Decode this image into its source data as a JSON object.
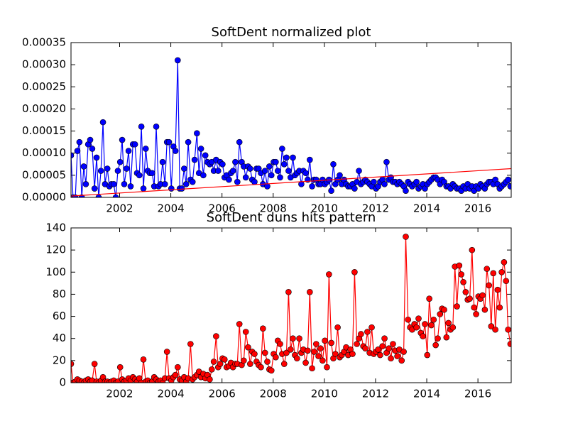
{
  "chart_data": [
    {
      "type": "line",
      "title": "SoftDent normalized plot",
      "xlim": [
        2000.1,
        2017.3
      ],
      "xticks": [
        2002,
        2004,
        2006,
        2008,
        2010,
        2012,
        2014,
        2016
      ],
      "ylim": [
        0,
        0.00035
      ],
      "yticks": [
        {
          "value": 0,
          "label": "0.00000"
        },
        {
          "value": 5e-05,
          "label": "0.00005"
        },
        {
          "value": 0.0001,
          "label": "0.00010"
        },
        {
          "value": 0.00015,
          "label": "0.00015"
        },
        {
          "value": 0.0002,
          "label": "0.00020"
        },
        {
          "value": 0.00025,
          "label": "0.00025"
        },
        {
          "value": 0.0003,
          "label": "0.00030"
        },
        {
          "value": 0.00035,
          "label": "0.00035"
        }
      ],
      "x": [
        2000.1,
        2000.18,
        2000.27,
        2000.35,
        2000.43,
        2000.52,
        2000.6,
        2000.68,
        2000.77,
        2000.85,
        2000.93,
        2001.02,
        2001.1,
        2001.18,
        2001.27,
        2001.35,
        2001.43,
        2001.52,
        2001.6,
        2001.68,
        2001.77,
        2001.85,
        2001.93,
        2002.02,
        2002.1,
        2002.18,
        2002.27,
        2002.35,
        2002.43,
        2002.52,
        2002.6,
        2002.68,
        2002.77,
        2002.85,
        2002.93,
        2003.02,
        2003.1,
        2003.18,
        2003.27,
        2003.35,
        2003.43,
        2003.52,
        2003.6,
        2003.68,
        2003.77,
        2003.85,
        2003.93,
        2004.02,
        2004.1,
        2004.18,
        2004.27,
        2004.35,
        2004.43,
        2004.52,
        2004.6,
        2004.68,
        2004.77,
        2004.85,
        2004.93,
        2005.02,
        2005.1,
        2005.18,
        2005.27,
        2005.35,
        2005.43,
        2005.52,
        2005.6,
        2005.68,
        2005.77,
        2005.85,
        2005.93,
        2006.02,
        2006.1,
        2006.18,
        2006.27,
        2006.35,
        2006.43,
        2006.52,
        2006.6,
        2006.68,
        2006.77,
        2006.85,
        2006.93,
        2007.02,
        2007.1,
        2007.18,
        2007.27,
        2007.35,
        2007.43,
        2007.52,
        2007.6,
        2007.68,
        2007.77,
        2007.85,
        2007.93,
        2008.02,
        2008.1,
        2008.18,
        2008.27,
        2008.35,
        2008.43,
        2008.52,
        2008.6,
        2008.68,
        2008.77,
        2008.85,
        2008.93,
        2009.02,
        2009.1,
        2009.18,
        2009.27,
        2009.35,
        2009.43,
        2009.52,
        2009.6,
        2009.68,
        2009.77,
        2009.85,
        2009.93,
        2010.02,
        2010.1,
        2010.18,
        2010.27,
        2010.35,
        2010.43,
        2010.52,
        2010.6,
        2010.68,
        2010.77,
        2010.85,
        2010.93,
        2011.02,
        2011.1,
        2011.18,
        2011.27,
        2011.35,
        2011.43,
        2011.52,
        2011.6,
        2011.68,
        2011.77,
        2011.85,
        2011.93,
        2012.02,
        2012.1,
        2012.18,
        2012.27,
        2012.35,
        2012.43,
        2012.52,
        2012.6,
        2012.68,
        2012.77,
        2012.85,
        2012.93,
        2013.02,
        2013.1,
        2013.18,
        2013.27,
        2013.35,
        2013.43,
        2013.52,
        2013.6,
        2013.68,
        2013.77,
        2013.85,
        2013.93,
        2014.02,
        2014.1,
        2014.18,
        2014.27,
        2014.35,
        2014.43,
        2014.52,
        2014.6,
        2014.68,
        2014.77,
        2014.85,
        2014.93,
        2015.02,
        2015.1,
        2015.18,
        2015.27,
        2015.35,
        2015.43,
        2015.52,
        2015.6,
        2015.68,
        2015.77,
        2015.85,
        2015.93,
        2016.02,
        2016.1,
        2016.18,
        2016.27,
        2016.35,
        2016.43,
        2016.52,
        2016.6,
        2016.68,
        2016.77,
        2016.85,
        2016.93,
        2017.02,
        2017.1,
        2017.18,
        2017.27
      ],
      "series": [
        {
          "color": "#0000ff",
          "marker": true,
          "values": [
            9.5e-05,
            0,
            0,
            0.000105,
            0.000125,
            0,
            7e-05,
            3e-05,
            0.00012,
            0.00013,
            0.00011,
            2e-05,
            9e-05,
            0,
            6e-05,
            0.00017,
            3e-05,
            6.5e-05,
            2.5e-05,
            3e-05,
            3e-05,
            0,
            6e-05,
            8e-05,
            0.00013,
            3e-05,
            6.5e-05,
            0.000105,
            2.5e-05,
            0.00012,
            0.00012,
            5.5e-05,
            5e-05,
            0.00016,
            2e-05,
            0.00011,
            6e-05,
            5.5e-05,
            5.5e-05,
            2.5e-05,
            0.00016,
            2.5e-05,
            3e-05,
            8e-05,
            3e-05,
            0.000125,
            0.000125,
            2e-05,
            0.000115,
            0.000105,
            0.00031,
            2e-05,
            2e-05,
            6.5e-05,
            3e-05,
            0.000125,
            4e-05,
            3.5e-05,
            8.5e-05,
            0.000145,
            5.5e-05,
            0.00011,
            5e-05,
            9.5e-05,
            8e-05,
            7.5e-05,
            8e-05,
            6e-05,
            8.5e-05,
            6e-05,
            8e-05,
            7.5e-05,
            4.5e-05,
            5e-05,
            4e-05,
            5.5e-05,
            6e-05,
            8e-05,
            3.5e-05,
            0.000125,
            8e-05,
            7e-05,
            4.5e-05,
            7e-05,
            6.5e-05,
            4e-05,
            3.5e-05,
            6.5e-05,
            6.5e-05,
            5.5e-05,
            3e-05,
            6e-05,
            2.5e-05,
            7e-05,
            5e-05,
            8e-05,
            8e-05,
            6e-05,
            4.5e-05,
            0.00011,
            7.5e-05,
            9e-05,
            6e-05,
            4.5e-05,
            9e-05,
            5e-05,
            5.5e-05,
            6e-05,
            3e-05,
            6e-05,
            5.5e-05,
            4e-05,
            8.5e-05,
            2.5e-05,
            4e-05,
            4e-05,
            3e-05,
            3e-05,
            4e-05,
            3e-05,
            3.5e-05,
            4e-05,
            1.5e-05,
            7.5e-05,
            3e-05,
            4e-05,
            5e-05,
            3e-05,
            4e-05,
            3e-05,
            2.5e-05,
            2.5e-05,
            3e-05,
            2e-05,
            3.5e-05,
            6e-05,
            3e-05,
            3.5e-05,
            4e-05,
            3.5e-05,
            3e-05,
            2.5e-05,
            3.5e-05,
            2e-05,
            2.5e-05,
            3.5e-05,
            4e-05,
            3e-05,
            8e-05,
            4e-05,
            4.5e-05,
            3.5e-05,
            3.5e-05,
            3e-05,
            3.5e-05,
            3e-05,
            2.5e-05,
            1.5e-05,
            3.5e-05,
            3e-05,
            2.5e-05,
            3e-05,
            3.5e-05,
            2e-05,
            2.5e-05,
            3e-05,
            2e-05,
            3e-05,
            3.5e-05,
            4e-05,
            4.5e-05,
            4.5e-05,
            4e-05,
            3e-05,
            4e-05,
            3.5e-05,
            2.5e-05,
            2.5e-05,
            2e-05,
            3e-05,
            2.5e-05,
            2e-05,
            2e-05,
            1.5e-05,
            2.5e-05,
            2e-05,
            3e-05,
            2e-05,
            2.5e-05,
            1.5e-05,
            2.5e-05,
            2e-05,
            3e-05,
            2.5e-05,
            2e-05,
            3e-05,
            3.5e-05,
            3.5e-05,
            3e-05,
            4e-05,
            3e-05,
            2e-05,
            2.5e-05,
            3e-05,
            3.5e-05,
            4e-05,
            2.5e-05
          ]
        },
        {
          "color": "#ff0000",
          "marker": false,
          "x": [
            2000.1,
            2017.3
          ],
          "values": [
            3e-06,
            6.5e-05
          ]
        }
      ]
    },
    {
      "type": "line",
      "title": "SoftDent duns hits pattern",
      "xlim": [
        2000.1,
        2017.3
      ],
      "xticks": [
        2002,
        2004,
        2006,
        2008,
        2010,
        2012,
        2014,
        2016
      ],
      "ylim": [
        0,
        140
      ],
      "yticks": [
        0,
        20,
        40,
        60,
        80,
        100,
        120,
        140
      ],
      "x": [
        2000.1,
        2000.18,
        2000.27,
        2000.35,
        2000.43,
        2000.52,
        2000.6,
        2000.68,
        2000.77,
        2000.85,
        2000.93,
        2001.02,
        2001.1,
        2001.18,
        2001.27,
        2001.35,
        2001.43,
        2001.52,
        2001.6,
        2001.68,
        2001.77,
        2001.85,
        2001.93,
        2002.02,
        2002.1,
        2002.18,
        2002.27,
        2002.35,
        2002.43,
        2002.52,
        2002.6,
        2002.68,
        2002.77,
        2002.85,
        2002.93,
        2003.02,
        2003.1,
        2003.18,
        2003.27,
        2003.35,
        2003.43,
        2003.52,
        2003.6,
        2003.68,
        2003.77,
        2003.85,
        2003.93,
        2004.02,
        2004.1,
        2004.18,
        2004.27,
        2004.35,
        2004.43,
        2004.52,
        2004.6,
        2004.68,
        2004.77,
        2004.85,
        2004.93,
        2005.02,
        2005.1,
        2005.18,
        2005.27,
        2005.35,
        2005.43,
        2005.52,
        2005.6,
        2005.68,
        2005.77,
        2005.85,
        2005.93,
        2006.02,
        2006.1,
        2006.18,
        2006.27,
        2006.35,
        2006.43,
        2006.52,
        2006.6,
        2006.68,
        2006.77,
        2006.85,
        2006.93,
        2007.02,
        2007.1,
        2007.18,
        2007.27,
        2007.35,
        2007.43,
        2007.52,
        2007.6,
        2007.68,
        2007.77,
        2007.85,
        2007.93,
        2008.02,
        2008.1,
        2008.18,
        2008.27,
        2008.35,
        2008.43,
        2008.52,
        2008.6,
        2008.68,
        2008.77,
        2008.85,
        2008.93,
        2009.02,
        2009.1,
        2009.18,
        2009.27,
        2009.35,
        2009.43,
        2009.52,
        2009.6,
        2009.68,
        2009.77,
        2009.85,
        2009.93,
        2010.02,
        2010.1,
        2010.18,
        2010.27,
        2010.35,
        2010.43,
        2010.52,
        2010.6,
        2010.68,
        2010.77,
        2010.85,
        2010.93,
        2011.02,
        2011.1,
        2011.18,
        2011.27,
        2011.35,
        2011.43,
        2011.52,
        2011.6,
        2011.68,
        2011.77,
        2011.85,
        2011.93,
        2012.02,
        2012.1,
        2012.18,
        2012.27,
        2012.35,
        2012.43,
        2012.52,
        2012.6,
        2012.68,
        2012.77,
        2012.85,
        2012.93,
        2013.02,
        2013.1,
        2013.18,
        2013.27,
        2013.35,
        2013.43,
        2013.52,
        2013.6,
        2013.68,
        2013.77,
        2013.85,
        2013.93,
        2014.02,
        2014.1,
        2014.18,
        2014.27,
        2014.35,
        2014.43,
        2014.52,
        2014.6,
        2014.68,
        2014.77,
        2014.85,
        2014.93,
        2015.02,
        2015.1,
        2015.18,
        2015.27,
        2015.35,
        2015.43,
        2015.52,
        2015.6,
        2015.68,
        2015.77,
        2015.85,
        2015.93,
        2016.02,
        2016.1,
        2016.18,
        2016.27,
        2016.35,
        2016.43,
        2016.52,
        2016.6,
        2016.68,
        2016.77,
        2016.85,
        2016.93,
        2017.02,
        2017.1,
        2017.18,
        2017.27
      ],
      "series": [
        {
          "color": "#ff0000",
          "marker": true,
          "values": [
            17,
            0,
            1,
            3,
            2,
            1,
            0,
            2,
            3,
            1,
            2,
            17,
            1,
            0,
            2,
            5,
            1,
            1,
            0,
            1,
            2,
            0,
            1,
            14,
            3,
            1,
            2,
            4,
            2,
            5,
            3,
            1,
            4,
            0,
            21,
            1,
            2,
            0,
            1,
            5,
            3,
            1,
            2,
            0,
            4,
            28,
            4,
            2,
            5,
            7,
            14,
            3,
            2,
            5,
            1,
            4,
            35,
            3,
            5,
            7,
            10,
            5,
            8,
            4,
            7,
            3,
            12,
            19,
            42,
            14,
            17,
            22,
            21,
            14,
            15,
            18,
            14,
            17,
            17,
            53,
            16,
            20,
            46,
            32,
            17,
            28,
            26,
            19,
            16,
            14,
            49,
            27,
            19,
            12,
            11,
            26,
            23,
            38,
            35,
            26,
            17,
            27,
            82,
            30,
            40,
            25,
            22,
            40,
            27,
            30,
            18,
            29,
            82,
            13,
            28,
            35,
            24,
            31,
            20,
            38,
            14,
            98,
            36,
            22,
            26,
            50,
            23,
            25,
            28,
            32,
            25,
            30,
            26,
            100,
            35,
            40,
            44,
            33,
            31,
            46,
            27,
            50,
            26,
            28,
            30,
            25,
            33,
            40,
            27,
            31,
            22,
            35,
            29,
            24,
            30,
            20,
            28,
            132,
            57,
            50,
            48,
            53,
            50,
            58,
            45,
            42,
            53,
            25,
            76,
            52,
            57,
            34,
            40,
            62,
            67,
            66,
            41,
            54,
            48,
            50,
            105,
            69,
            106,
            98,
            91,
            82,
            75,
            76,
            120,
            68,
            62,
            78,
            76,
            79,
            66,
            103,
            88,
            51,
            99,
            48,
            84,
            68,
            100,
            109,
            92,
            48,
            35
          ]
        }
      ]
    }
  ]
}
